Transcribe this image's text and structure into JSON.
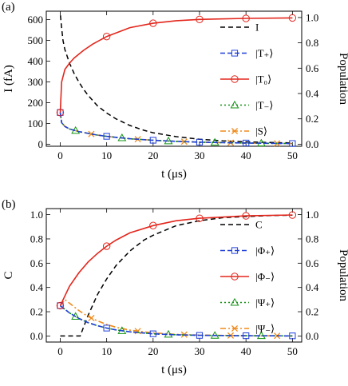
{
  "chart_data": [
    {
      "type": "line",
      "panel_label": "(a)",
      "xlabel": "t (μs)",
      "ylabel": "I (fA)",
      "ylabel_right": "Population",
      "xlim": [
        -3,
        52
      ],
      "ylim": [
        -10,
        640
      ],
      "ylim_right": [
        -0.0164,
        1.05
      ],
      "xticks": [
        0,
        10,
        20,
        30,
        40,
        50
      ],
      "yticks_left": [
        0,
        100,
        200,
        300,
        400,
        500,
        600
      ],
      "yticks_right": [
        0.0,
        0.2,
        0.4,
        0.6,
        0.8,
        1.0
      ],
      "xticklabels": [
        "0",
        "10",
        "20",
        "30",
        "40",
        "50"
      ],
      "yticklabels_left": [
        "0",
        "100",
        "200",
        "300",
        "400",
        "500",
        "600"
      ],
      "yticklabels_right": [
        "0.0",
        "0.2",
        "0.4",
        "0.6",
        "0.8",
        "1.0"
      ],
      "grid": false,
      "legend_position": "top-right",
      "series": [
        {
          "name": "I",
          "axis": "left",
          "color": "#000000",
          "dash": "6,4",
          "marker": "none",
          "x": [
            0.05,
            0.3,
            0.6,
            1,
            2,
            3,
            4,
            5,
            6,
            8,
            10,
            12,
            15,
            18,
            20,
            25,
            30,
            35,
            40,
            45,
            50
          ],
          "y": [
            620,
            560,
            500,
            455,
            390,
            340,
            300,
            265,
            235,
            185,
            150,
            122,
            90,
            67,
            55,
            36,
            24,
            16,
            11,
            8,
            6
          ]
        },
        {
          "name": "|T₊⟩",
          "axis": "right",
          "color": "#1f3fd8",
          "dash": "6,3",
          "marker": "square",
          "x": [
            0,
            0.3,
            1,
            2,
            4,
            6,
            8,
            10,
            15,
            20,
            25,
            30,
            40,
            50
          ],
          "y": [
            0.25,
            0.17,
            0.14,
            0.12,
            0.1,
            0.085,
            0.072,
            0.062,
            0.043,
            0.031,
            0.022,
            0.016,
            0.009,
            0.005
          ],
          "markers_x": [
            0,
            10,
            20,
            30,
            40,
            50
          ]
        },
        {
          "name": "|T₀⟩",
          "axis": "right",
          "color": "#e3261c",
          "dash": "",
          "marker": "circle",
          "x": [
            0,
            0.3,
            1,
            2,
            3,
            5,
            7,
            10,
            15,
            20,
            25,
            30,
            40,
            50
          ],
          "y": [
            0.25,
            0.49,
            0.59,
            0.64,
            0.68,
            0.74,
            0.79,
            0.85,
            0.92,
            0.955,
            0.975,
            0.985,
            0.993,
            0.997
          ],
          "markers_x": [
            0,
            10,
            20,
            30,
            40,
            50
          ]
        },
        {
          "name": "|T₋⟩",
          "axis": "right",
          "color": "#149414",
          "dash": "2,3",
          "marker": "triangle",
          "x": [
            0,
            0.3,
            1,
            2,
            4,
            6,
            8,
            10,
            15,
            20,
            25,
            30,
            40,
            50
          ],
          "y": [
            0.25,
            0.17,
            0.14,
            0.12,
            0.1,
            0.085,
            0.072,
            0.062,
            0.043,
            0.031,
            0.022,
            0.016,
            0.009,
            0.005
          ],
          "markers_x": [
            3.3,
            13.3,
            23.3,
            33.3,
            43.3
          ]
        },
        {
          "name": "|S⟩",
          "axis": "right",
          "color": "#f08a1c",
          "dash": "7,3,2,3",
          "marker": "cross",
          "x": [
            0,
            0.3,
            1,
            2,
            4,
            6,
            8,
            10,
            15,
            20,
            25,
            30,
            40,
            50
          ],
          "y": [
            0.25,
            0.17,
            0.14,
            0.12,
            0.1,
            0.085,
            0.072,
            0.062,
            0.043,
            0.031,
            0.022,
            0.016,
            0.009,
            0.005
          ],
          "markers_x": [
            6.7,
            16.7,
            26.7,
            36.7,
            46.7
          ]
        }
      ]
    },
    {
      "type": "line",
      "panel_label": "(b)",
      "xlabel": "t (μs)",
      "ylabel": "C",
      "ylabel_right": "Population",
      "xlim": [
        -3,
        52
      ],
      "ylim": [
        -0.05,
        1.05
      ],
      "ylim_right": [
        -0.05,
        1.05
      ],
      "xticks": [
        0,
        10,
        20,
        30,
        40,
        50
      ],
      "yticks_left": [
        0.0,
        0.2,
        0.4,
        0.6,
        0.8,
        1.0
      ],
      "yticks_right": [
        0.0,
        0.2,
        0.4,
        0.6,
        0.8,
        1.0
      ],
      "xticklabels": [
        "0",
        "10",
        "20",
        "30",
        "40",
        "50"
      ],
      "yticklabels_left": [
        "0.0",
        "0.2",
        "0.4",
        "0.6",
        "0.8",
        "1.0"
      ],
      "yticklabels_right": [
        "0.0",
        "0.2",
        "0.4",
        "0.6",
        "0.8",
        "1.0"
      ],
      "grid": false,
      "legend_position": "top-right",
      "series": [
        {
          "name": "C",
          "axis": "left",
          "color": "#000000",
          "dash": "6,4",
          "marker": "none",
          "x": [
            0,
            4.3,
            5,
            6,
            8,
            10,
            12,
            15,
            18,
            20,
            25,
            30,
            35,
            40,
            45,
            50
          ],
          "y": [
            0,
            0,
            0.07,
            0.17,
            0.34,
            0.47,
            0.58,
            0.7,
            0.79,
            0.83,
            0.91,
            0.95,
            0.975,
            0.985,
            0.992,
            0.996
          ]
        },
        {
          "name": "|Φ₊⟩",
          "axis": "right",
          "color": "#1f3fd8",
          "dash": "6,3",
          "marker": "square",
          "x": [
            0,
            2,
            4,
            6,
            8,
            10,
            12,
            15,
            20,
            25,
            30,
            40,
            50
          ],
          "y": [
            0.25,
            0.19,
            0.145,
            0.11,
            0.085,
            0.065,
            0.05,
            0.034,
            0.018,
            0.01,
            0.005,
            0.002,
            0.001
          ],
          "markers_x": [
            0,
            10,
            20,
            30,
            40,
            50
          ]
        },
        {
          "name": "|Φ₋⟩",
          "axis": "right",
          "color": "#e3261c",
          "dash": "",
          "marker": "circle",
          "x": [
            0,
            1,
            2,
            4,
            6,
            8,
            10,
            12,
            15,
            20,
            25,
            30,
            40,
            50
          ],
          "y": [
            0.25,
            0.33,
            0.41,
            0.52,
            0.61,
            0.68,
            0.74,
            0.79,
            0.85,
            0.91,
            0.95,
            0.97,
            0.99,
            0.997
          ],
          "markers_x": [
            0,
            10,
            20,
            30,
            40,
            50
          ]
        },
        {
          "name": "|Ψ₊⟩",
          "axis": "right",
          "color": "#149414",
          "dash": "2,3",
          "marker": "triangle",
          "x": [
            0,
            2,
            4,
            6,
            8,
            10,
            12,
            15,
            20,
            25,
            30,
            40,
            50
          ],
          "y": [
            0.25,
            0.19,
            0.145,
            0.11,
            0.085,
            0.065,
            0.05,
            0.034,
            0.018,
            0.01,
            0.005,
            0.002,
            0.001
          ],
          "markers_x": [
            3.3,
            13.3,
            23.3,
            33.3,
            43.3
          ]
        },
        {
          "name": "|Ψ₋⟩",
          "axis": "right",
          "color": "#f08a1c",
          "dash": "7,3,2,3",
          "marker": "cross",
          "x": [
            0,
            1,
            2,
            4,
            6,
            8,
            10,
            12,
            15,
            20,
            25,
            30,
            40,
            50
          ],
          "y": [
            0.25,
            0.3,
            0.27,
            0.21,
            0.16,
            0.125,
            0.095,
            0.072,
            0.048,
            0.025,
            0.013,
            0.007,
            0.002,
            0.001
          ],
          "markers_x": [
            6.7,
            16.7,
            26.7,
            36.7,
            46.7
          ]
        }
      ]
    }
  ]
}
